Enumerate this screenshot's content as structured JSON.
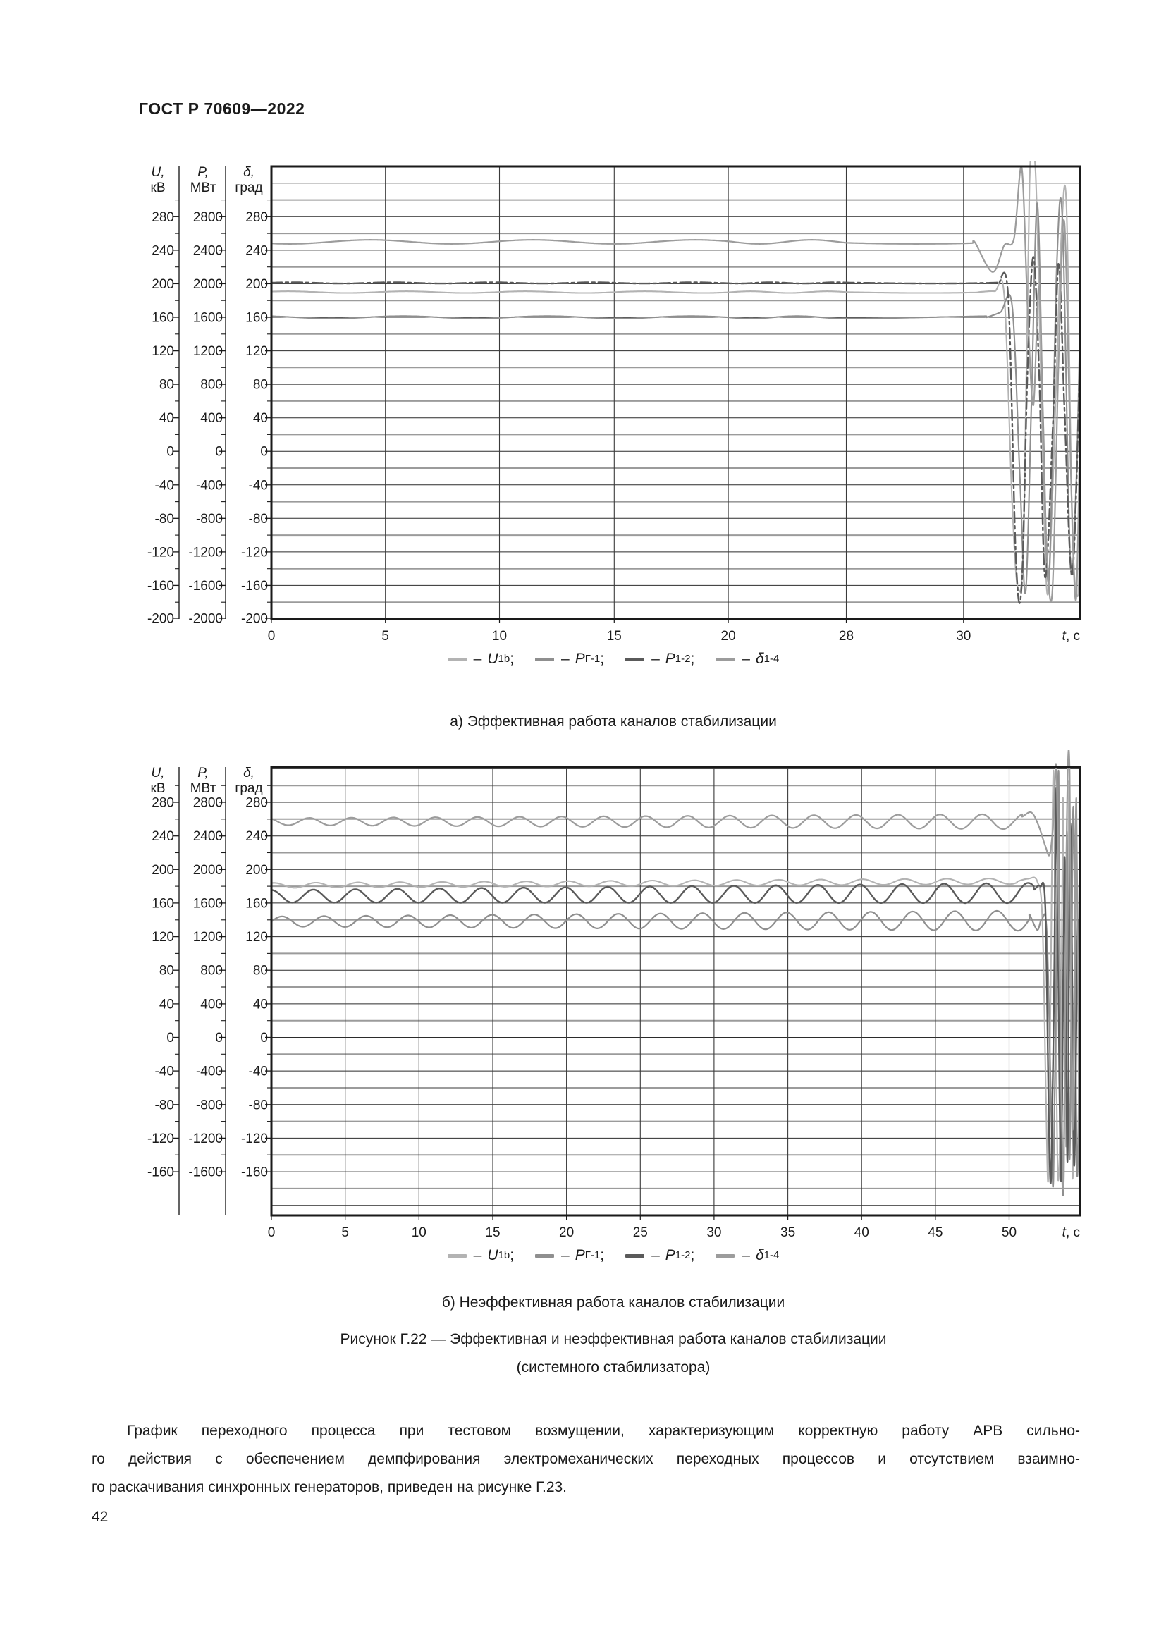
{
  "page": {
    "header": "ГОСТ Р 70609—2022",
    "page_number": "42"
  },
  "axis_units": {
    "u": {
      "sym": "U,",
      "unit": "кВ"
    },
    "p": {
      "sym": "P,",
      "unit": "МВт"
    },
    "d": {
      "sym": "δ,",
      "unit": "град"
    }
  },
  "legend": {
    "items": [
      {
        "main": "U",
        "sub": "1b",
        "punct": ";",
        "color": "#b3b3b3"
      },
      {
        "main": "P",
        "sub": "Г-1",
        "punct": ";",
        "color": "#8f8f8f"
      },
      {
        "main": "P",
        "sub": "1-2",
        "punct": ";",
        "color": "#5a5a5a"
      },
      {
        "main": "δ",
        "sub": "1-4",
        "punct": "",
        "color": "#9c9c9c"
      }
    ]
  },
  "captions": {
    "a": "а)  Эффективная работа каналов стабилизации",
    "b": "б)  Неэффективная работа каналов стабилизации",
    "figure_line1": "Рисунок Г.22 — Эффективная и неэффективная работа каналов стабилизации",
    "figure_line2": "(системного стабилизатора)"
  },
  "paragraph": {
    "lines": [
      "График переходного процесса при тестовом возмущении, характеризующим корректную работу АРВ сильно-",
      "го действия с обеспечением демпфирования электромеханических переходных процессов и отсутствием взаимно-",
      "го раскачивания синхронных генераторов, приведен на рисунке Г.23."
    ]
  },
  "chart_data": [
    {
      "id": "a",
      "type": "line",
      "title": "а) Эффективная работа каналов стабилизации",
      "x_label": "t, с",
      "x_range": [
        0,
        33
      ],
      "y_range": [
        -200,
        340
      ],
      "x_ticks": [
        {
          "t": 0,
          "label": "0"
        },
        {
          "t": 5,
          "label": "5"
        },
        {
          "t": 10,
          "label": "10"
        },
        {
          "t": 15,
          "label": "15"
        },
        {
          "t": 20,
          "label": "20"
        },
        {
          "t": 28,
          "label": "28"
        },
        {
          "t": 30,
          "label": "30"
        }
      ],
      "x_anchors": {
        "t": [
          0,
          5,
          10,
          15,
          20,
          28,
          30,
          33
        ],
        "f": [
          0,
          0.141,
          0.282,
          0.424,
          0.565,
          0.711,
          0.856,
          1
        ]
      },
      "y_tick_values": [
        280,
        240,
        200,
        160,
        120,
        80,
        40,
        0,
        -40,
        -80,
        -120,
        -160,
        -200
      ],
      "y_scales": {
        "u_factor": 1,
        "p_factor": 10,
        "d_factor": 1
      },
      "series": [
        {
          "name": "U1b",
          "color": "#b3b3b3",
          "width": 2.1,
          "wave": {
            "t0": 0,
            "t1": 30.4,
            "base": 190,
            "base1": 190,
            "amp": 1.0,
            "amp1": 1.0,
            "period": 5.2,
            "phase": 0.7
          },
          "tail": [
            [
              30.4,
              190
            ],
            [
              30.8,
              191
            ],
            [
              31.05,
              185
            ],
            [
              31.25,
              -60
            ],
            [
              31.4,
              -163
            ],
            [
              31.55,
              -100
            ],
            [
              31.7,
              320
            ],
            [
              31.85,
              338
            ],
            [
              32.0,
              80
            ],
            [
              32.15,
              -168
            ],
            [
              32.3,
              -40
            ],
            [
              32.5,
              238
            ],
            [
              32.65,
              295
            ],
            [
              32.8,
              -90
            ],
            [
              32.95,
              -172
            ],
            [
              33,
              -60
            ]
          ]
        },
        {
          "name": "PГ-1",
          "color": "#8f8f8f",
          "width": 2.1,
          "wave": {
            "t0": 0,
            "t1": 30.6,
            "base": 160,
            "base1": 160,
            "amp": 1.4,
            "amp1": 1.4,
            "period": 6.3,
            "phase": 2.1
          },
          "tail": [
            [
              30.6,
              160
            ],
            [
              30.95,
              166
            ],
            [
              31.25,
              174
            ],
            [
              31.45,
              -30
            ],
            [
              31.6,
              -168
            ],
            [
              31.75,
              60
            ],
            [
              31.9,
              296
            ],
            [
              32.05,
              40
            ],
            [
              32.2,
              -152
            ],
            [
              32.4,
              220
            ],
            [
              32.55,
              275
            ],
            [
              32.75,
              -130
            ],
            [
              32.9,
              -40
            ],
            [
              33,
              150
            ]
          ]
        },
        {
          "name": "P1-2",
          "color": "#5a5a5a",
          "width": 2.4,
          "dash": "15 5 4 5",
          "wave": {
            "t0": 0,
            "t1": 30.9,
            "base": 201,
            "base1": 201,
            "amp": 0.7,
            "amp1": 0.7,
            "period": 4.4,
            "phase": 0.3
          },
          "tail": [
            [
              30.9,
              200
            ],
            [
              31.15,
              185
            ],
            [
              31.35,
              -130
            ],
            [
              31.5,
              -158
            ],
            [
              31.65,
              100
            ],
            [
              31.8,
              232
            ],
            [
              31.95,
              90
            ],
            [
              32.1,
              -150
            ],
            [
              32.3,
              30
            ],
            [
              32.45,
              225
            ],
            [
              32.6,
              50
            ],
            [
              32.8,
              -148
            ],
            [
              33,
              110
            ]
          ]
        },
        {
          "name": "δ1-4",
          "color": "#9c9c9c",
          "width": 2.2,
          "wave": {
            "t0": 0,
            "t1": 30.3,
            "base": 250,
            "base1": 250,
            "amp": 2.4,
            "amp1": 2.4,
            "period": 7.1,
            "phase": 4.0
          },
          "tail": [
            [
              30.3,
              249
            ],
            [
              30.75,
              214
            ],
            [
              31.05,
              246
            ],
            [
              31.3,
              254
            ],
            [
              31.5,
              338
            ],
            [
              31.65,
              170
            ],
            [
              31.8,
              55
            ],
            [
              31.95,
              195
            ],
            [
              32.1,
              -70
            ],
            [
              32.28,
              -172
            ],
            [
              32.45,
              110
            ],
            [
              32.6,
              272
            ],
            [
              32.78,
              -50
            ],
            [
              32.9,
              -176
            ],
            [
              33,
              30
            ]
          ]
        }
      ]
    },
    {
      "id": "b",
      "type": "line",
      "title": "б) Неэффективная работа каналов стабилизации",
      "x_label": "t, с",
      "x_range": [
        0,
        54.8
      ],
      "y_range": [
        -212,
        322
      ],
      "x_ticks": [
        {
          "t": 0,
          "label": "0"
        },
        {
          "t": 5,
          "label": "5"
        },
        {
          "t": 10,
          "label": "10"
        },
        {
          "t": 15,
          "label": "15"
        },
        {
          "t": 20,
          "label": "20"
        },
        {
          "t": 25,
          "label": "25"
        },
        {
          "t": 30,
          "label": "30"
        },
        {
          "t": 35,
          "label": "35"
        },
        {
          "t": 40,
          "label": "40"
        },
        {
          "t": 45,
          "label": "45"
        },
        {
          "t": 50,
          "label": "50"
        }
      ],
      "x_anchors": {
        "t": [
          0,
          54.8
        ],
        "f": [
          0,
          1
        ]
      },
      "y_tick_values": [
        280,
        240,
        200,
        160,
        120,
        80,
        40,
        0,
        -40,
        -80,
        -120,
        -160
      ],
      "y_scales": {
        "u_factor": 1,
        "p_factor": 10,
        "d_factor": 1
      },
      "series": [
        {
          "name": "U1b",
          "color": "#b3b3b3",
          "width": 2.1,
          "wave": {
            "t0": 0,
            "t1": 50.6,
            "base": 181,
            "base1": 186,
            "amp": 3.0,
            "amp1": 3.5,
            "period": 2.85,
            "phase": 1.2
          },
          "tail": [
            [
              50.6,
              186
            ],
            [
              51.3,
              189
            ],
            [
              51.9,
              186
            ],
            [
              52.25,
              140
            ],
            [
              52.5,
              -80
            ],
            [
              52.65,
              -168
            ],
            [
              52.8,
              40
            ],
            [
              53.0,
              318
            ],
            [
              53.15,
              60
            ],
            [
              53.3,
              -166
            ],
            [
              53.5,
              -60
            ],
            [
              53.65,
              285
            ],
            [
              53.85,
              -130
            ],
            [
              54.05,
              305
            ],
            [
              54.3,
              -168
            ],
            [
              54.55,
              210
            ],
            [
              54.8,
              -80
            ]
          ]
        },
        {
          "name": "PГ-1",
          "color": "#8f8f8f",
          "width": 2.2,
          "wave": {
            "t0": 0,
            "t1": 51.4,
            "base": 138,
            "base1": 139,
            "amp": 6.0,
            "amp1": 12.0,
            "period": 2.85,
            "phase": 0.0
          },
          "tail": [
            [
              51.4,
              146
            ],
            [
              51.9,
              128
            ],
            [
              52.2,
              140
            ],
            [
              52.55,
              125
            ],
            [
              52.85,
              -90
            ],
            [
              53.0,
              -170
            ],
            [
              53.2,
              90
            ],
            [
              53.35,
              315
            ],
            [
              53.5,
              -70
            ],
            [
              53.7,
              -170
            ],
            [
              53.9,
              245
            ],
            [
              54.1,
              -145
            ],
            [
              54.35,
              275
            ],
            [
              54.6,
              -162
            ],
            [
              54.8,
              70
            ]
          ]
        },
        {
          "name": "P1-2",
          "color": "#5a5a5a",
          "width": 2.4,
          "wave": {
            "t0": 0,
            "t1": 51.7,
            "base": 168,
            "base1": 172,
            "amp": 7.5,
            "amp1": 12.0,
            "period": 2.85,
            "phase": 1.6
          },
          "tail": [
            [
              51.7,
              176
            ],
            [
              52.1,
              180
            ],
            [
              52.45,
              155
            ],
            [
              52.7,
              -110
            ],
            [
              52.85,
              -162
            ],
            [
              53.05,
              70
            ],
            [
              53.2,
              295
            ],
            [
              53.4,
              -50
            ],
            [
              53.55,
              -158
            ],
            [
              53.75,
              215
            ],
            [
              53.95,
              -148
            ],
            [
              54.15,
              255
            ],
            [
              54.4,
              -152
            ],
            [
              54.65,
              140
            ],
            [
              54.8,
              -90
            ]
          ]
        },
        {
          "name": "δ1-4",
          "color": "#9c9c9c",
          "width": 2.2,
          "wave": {
            "t0": 0,
            "t1": 50.9,
            "base": 257,
            "base1": 257,
            "amp": 4.2,
            "amp1": 9.0,
            "period": 2.85,
            "phase": 2.2
          },
          "tail": [
            [
              50.9,
              263
            ],
            [
              51.5,
              268
            ],
            [
              52.0,
              252
            ],
            [
              52.45,
              228
            ],
            [
              52.75,
              218
            ],
            [
              53.0,
              258
            ],
            [
              53.2,
              332
            ],
            [
              53.38,
              120
            ],
            [
              53.55,
              -70
            ],
            [
              53.7,
              -166
            ],
            [
              53.9,
              250
            ],
            [
              54.1,
              315
            ],
            [
              54.3,
              -110
            ],
            [
              54.55,
              285
            ],
            [
              54.75,
              -160
            ],
            [
              54.8,
              -40
            ]
          ]
        }
      ]
    }
  ]
}
